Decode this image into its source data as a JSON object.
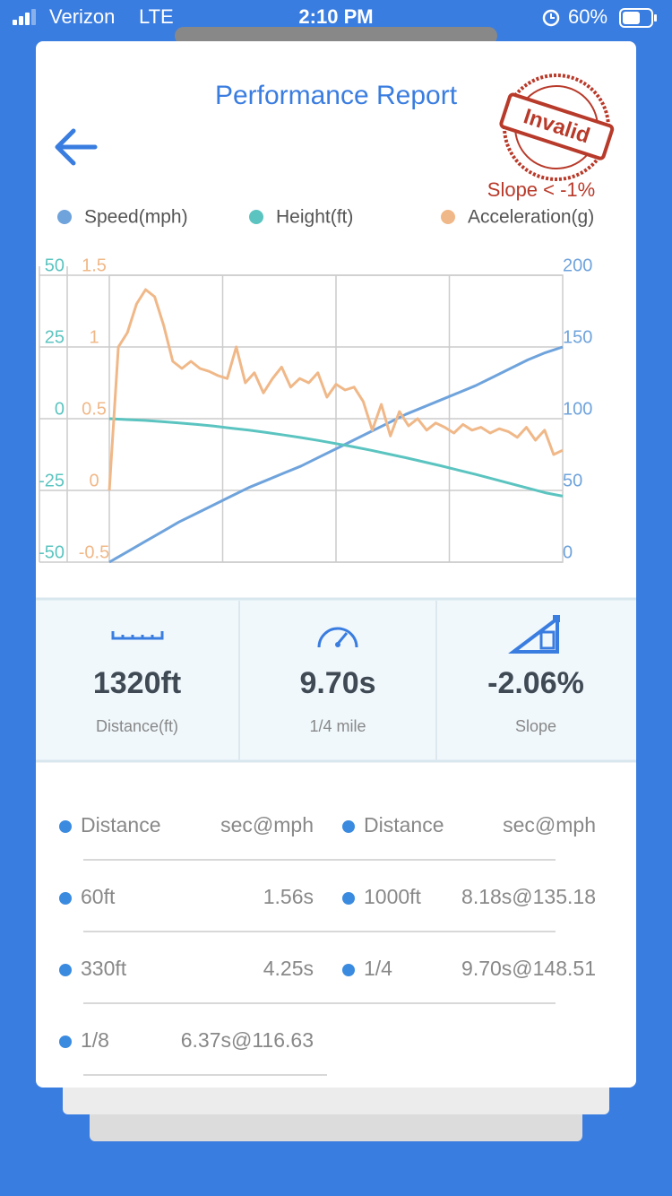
{
  "status": {
    "carrier": "Verizon",
    "network": "LTE",
    "time": "2:10 PM",
    "battery": "60%"
  },
  "header": {
    "title": "Performance Report",
    "stamp": "Invalid",
    "stamp_note": "Slope < -1%"
  },
  "chart_data": {
    "type": "line",
    "series": [
      {
        "name": "Speed(mph)",
        "color": "#6fa3dc",
        "axis": "y2",
        "values": [
          0,
          7,
          14,
          21,
          28,
          34,
          40,
          46,
          52,
          57,
          62,
          67,
          73,
          79,
          85,
          91,
          97,
          103,
          108,
          113,
          118,
          123,
          129,
          135,
          141,
          146,
          150
        ]
      },
      {
        "name": "Height(ft)",
        "color": "#5bc4c0",
        "axis": "y",
        "values": [
          0,
          -0.3,
          -0.6,
          -1,
          -1.5,
          -2,
          -2.6,
          -3.3,
          -4,
          -4.8,
          -5.7,
          -6.6,
          -7.6,
          -8.7,
          -9.8,
          -11,
          -12.3,
          -13.6,
          -15,
          -16.4,
          -17.9,
          -19.4,
          -21,
          -22.6,
          -24.2,
          -25.8,
          -27
        ]
      },
      {
        "name": "Acceleration(g)",
        "color": "#f0b888",
        "axis": "y3",
        "values": [
          0,
          1.0,
          1.1,
          1.3,
          1.4,
          1.35,
          1.15,
          0.9,
          0.85,
          0.9,
          0.85,
          0.83,
          0.8,
          0.78,
          1.0,
          0.75,
          0.82,
          0.68,
          0.78,
          0.86,
          0.72,
          0.78,
          0.75,
          0.82,
          0.65,
          0.74,
          0.7,
          0.72,
          0.62,
          0.42,
          0.6,
          0.38,
          0.55,
          0.45,
          0.5,
          0.42,
          0.47,
          0.44,
          0.4,
          0.46,
          0.42,
          0.44,
          0.4,
          0.43,
          0.41,
          0.37,
          0.44,
          0.35,
          0.42,
          0.25,
          0.28
        ]
      }
    ],
    "ylim": [
      -50,
      50
    ],
    "yticks": [
      -50,
      -25,
      0,
      25,
      50
    ],
    "y3lim": [
      -0.5,
      1.5
    ],
    "y3ticks": [
      -0.5,
      0,
      0.5,
      1,
      1.5
    ],
    "y2lim": [
      0,
      200
    ],
    "y2ticks": [
      0,
      50,
      100,
      150,
      200
    ],
    "grid": true
  },
  "stats": [
    {
      "value": "1320ft",
      "label": "Distance(ft)"
    },
    {
      "value": "9.70s",
      "label": "1/4 mile"
    },
    {
      "value": "-2.06%",
      "label": "Slope"
    }
  ],
  "table": {
    "headers": [
      "Distance",
      "sec@mph",
      "Distance",
      "sec@mph"
    ],
    "left": [
      [
        "60ft",
        "1.56s"
      ],
      [
        "330ft",
        "4.25s"
      ],
      [
        "1/8",
        "6.37s@116.63"
      ]
    ],
    "right": [
      [
        "1000ft",
        "8.18s@135.18"
      ],
      [
        "1/4",
        "9.70s@148.51"
      ]
    ]
  }
}
